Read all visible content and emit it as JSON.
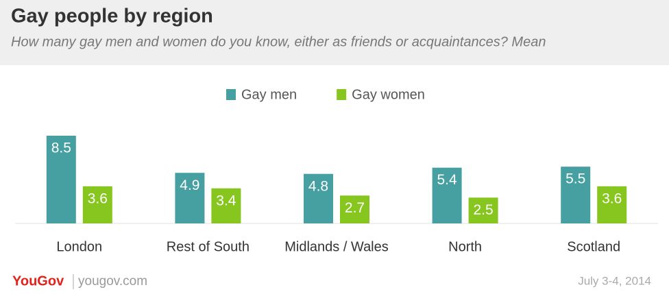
{
  "chart_data": {
    "type": "bar",
    "title": "Gay people by region",
    "subtitle": "How many gay men and women do you know, either as friends or acquaintances? Mean",
    "categories": [
      "London",
      "Rest of South",
      "Midlands / Wales",
      "North",
      "Scotland"
    ],
    "series": [
      {
        "name": "Gay men",
        "color": "#46a0a2",
        "values": [
          8.5,
          4.9,
          4.8,
          5.4,
          5.5
        ]
      },
      {
        "name": "Gay women",
        "color": "#86c61e",
        "values": [
          3.6,
          3.4,
          2.7,
          2.5,
          3.6
        ]
      }
    ],
    "legend": "top",
    "footer": {
      "logo": "YouGov",
      "site": "yougov.com",
      "date": "July 3-4, 2014"
    }
  }
}
